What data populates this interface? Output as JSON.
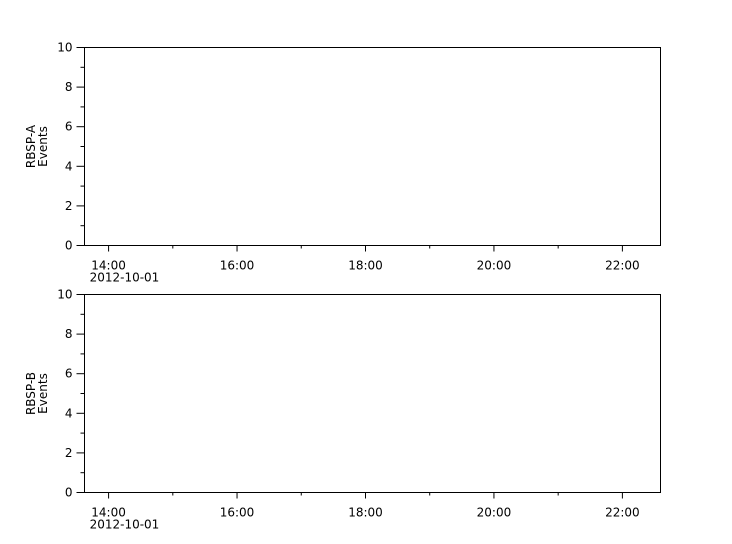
{
  "chart_data": [
    {
      "type": "line",
      "ylabel": [
        "RBSP-A",
        "Events"
      ],
      "ylim": [
        0,
        10
      ],
      "yticks": [
        "0",
        "2",
        "4",
        "6",
        "8",
        "10"
      ],
      "xlim": [
        "2012-10-01T13:37",
        "2012-10-01T22:36"
      ],
      "xticks": [
        "14:00",
        "16:00",
        "18:00",
        "20:00",
        "22:00"
      ],
      "xdate_label": "2012-10-01",
      "grid": false,
      "series": []
    },
    {
      "type": "line",
      "ylabel": [
        "RBSP-B",
        "Events"
      ],
      "ylim": [
        0,
        10
      ],
      "yticks": [
        "0",
        "2",
        "4",
        "6",
        "8",
        "10"
      ],
      "xlim": [
        "2012-10-01T13:37",
        "2012-10-01T22:36"
      ],
      "xticks": [
        "14:00",
        "16:00",
        "18:00",
        "20:00",
        "22:00"
      ],
      "xdate_label": "2012-10-01",
      "grid": false,
      "series": []
    }
  ],
  "colors": {
    "axis": "#000000",
    "background": "#ffffff"
  }
}
